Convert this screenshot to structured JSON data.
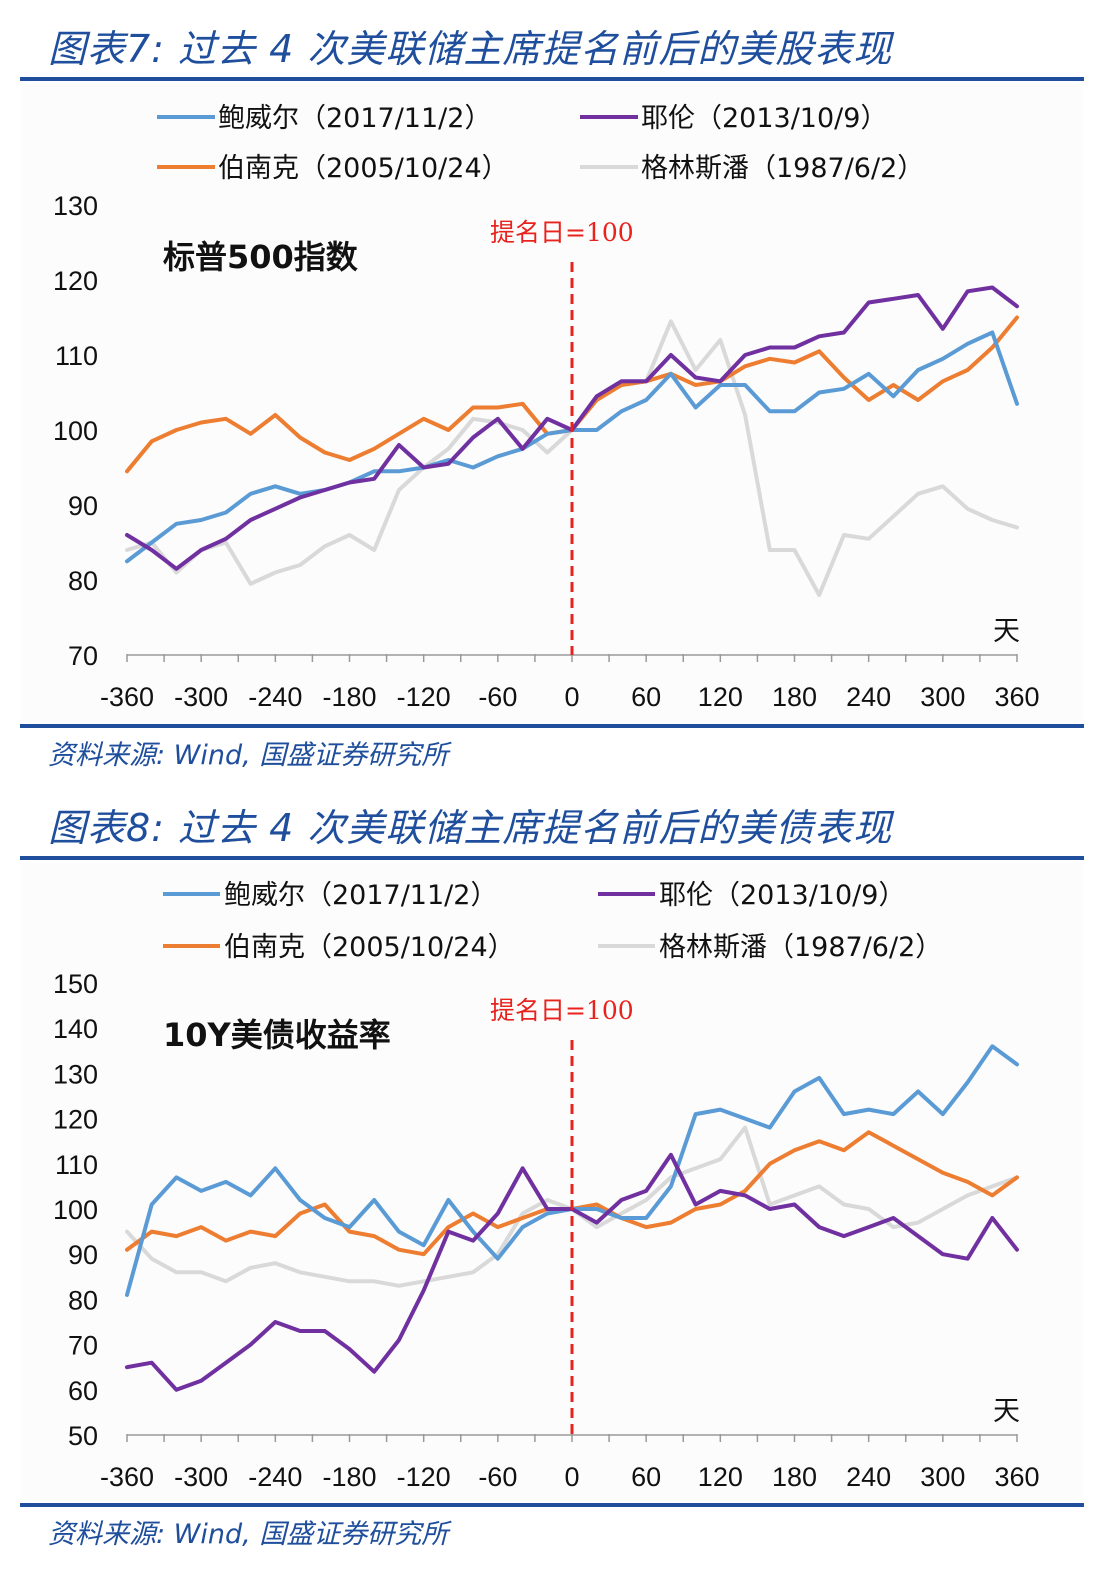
{
  "colors": {
    "powell": "#5b9bd5",
    "yellen": "#7030a0",
    "bernanke": "#ed7d31",
    "greenspan": "#d9d9d9",
    "nomination_line": "#e8231d",
    "title": "#1f4e9c"
  },
  "figures": [
    {
      "title": "图表7:  过去 4 次美联储主席提名前后的美股表现",
      "source": "资料来源: Wind, 国盛证券研究所",
      "legend": [
        "鲍威尔（2017/11/2）",
        "耶伦（2013/10/9）",
        "伯南克（2005/10/24）",
        "格林斯潘（1987/6/2）"
      ],
      "inner_label": "标普500指数",
      "annotation": "提名日=100",
      "x_unit": "天",
      "y_ticks": [
        "130",
        "120",
        "110",
        "100",
        "90",
        "80",
        "70"
      ],
      "x_ticks": [
        "-360",
        "-300",
        "-240",
        "-180",
        "-120",
        "-60",
        "0",
        "60",
        "120",
        "180",
        "240",
        "300",
        "360"
      ]
    },
    {
      "title": "图表8:  过去 4 次美联储主席提名前后的美债表现",
      "source": "资料来源: Wind, 国盛证券研究所",
      "legend": [
        "鲍威尔（2017/11/2）",
        "耶伦（2013/10/9）",
        "伯南克（2005/10/24）",
        "格林斯潘（1987/6/2）"
      ],
      "inner_label": "10Y美债收益率",
      "annotation": "提名日=100",
      "x_unit": "天",
      "y_ticks": [
        "150",
        "140",
        "130",
        "120",
        "110",
        "100",
        "90",
        "80",
        "70",
        "60",
        "50"
      ],
      "x_ticks": [
        "-360",
        "-300",
        "-240",
        "-180",
        "-120",
        "-60",
        "0",
        "60",
        "120",
        "180",
        "240",
        "300",
        "360"
      ]
    }
  ],
  "chart_data": [
    {
      "type": "line",
      "title": "标普500指数",
      "xlabel": "天",
      "ylabel": "",
      "xlim": [
        -360,
        360
      ],
      "ylim": [
        70,
        130
      ],
      "grid": false,
      "legend_position": "top",
      "vertical_marker": {
        "x": 0,
        "label": "提名日=100",
        "style": "dashed"
      },
      "x": [
        -360,
        -340,
        -320,
        -300,
        -280,
        -260,
        -240,
        -220,
        -200,
        -180,
        -160,
        -140,
        -120,
        -100,
        -80,
        -60,
        -40,
        -20,
        0,
        20,
        40,
        60,
        80,
        100,
        120,
        140,
        160,
        180,
        200,
        220,
        240,
        260,
        280,
        300,
        320,
        340,
        360
      ],
      "series": [
        {
          "name": "鲍威尔（2017/11/2）",
          "key": "powell",
          "values": [
            82.5,
            85,
            87.5,
            88,
            89,
            91.5,
            92.5,
            91.5,
            92,
            93,
            94.5,
            94.5,
            95,
            96,
            95,
            96.5,
            97.5,
            99.5,
            100,
            100,
            102.5,
            104,
            107.5,
            103,
            106,
            106,
            102.5,
            102.5,
            105,
            105.5,
            107.5,
            104.5,
            108,
            109.5,
            111.5,
            113,
            103.5
          ]
        },
        {
          "name": "耶伦（2013/10/9）",
          "key": "yellen",
          "values": [
            86,
            84,
            81.5,
            84,
            85.5,
            88,
            89.5,
            91,
            92,
            93,
            93.5,
            98,
            95,
            95.5,
            99,
            101.5,
            97.5,
            101.5,
            100,
            104.5,
            106.5,
            106.5,
            110,
            107,
            106.5,
            110,
            111,
            111,
            112.5,
            113,
            117,
            117.5,
            118,
            113.5,
            118.5,
            119,
            116.5
          ]
        },
        {
          "name": "伯南克（2005/10/24）",
          "key": "bernanke",
          "values": [
            94.5,
            98.5,
            100,
            101,
            101.5,
            99.5,
            102,
            99,
            97,
            96,
            97.5,
            99.5,
            101.5,
            100,
            103,
            103,
            103.5,
            99.5,
            100,
            104,
            106,
            106.5,
            107.5,
            106,
            106.5,
            108.5,
            109.5,
            109,
            110.5,
            107,
            104,
            106,
            104,
            106.5,
            108,
            111,
            115
          ]
        },
        {
          "name": "格林斯潘（1987/6/2）",
          "key": "greenspan",
          "values": [
            84,
            85,
            81,
            84,
            85,
            79.5,
            81,
            82,
            84.5,
            86,
            84,
            92,
            95,
            97.5,
            101.5,
            101,
            100,
            97,
            100,
            104.5,
            106,
            106.5,
            114.5,
            108,
            112,
            102,
            84,
            84,
            78,
            86,
            85.5,
            88.5,
            91.5,
            92.5,
            89.5,
            88,
            87
          ]
        }
      ]
    },
    {
      "type": "line",
      "title": "10Y美债收益率",
      "xlabel": "天",
      "ylabel": "",
      "xlim": [
        -360,
        360
      ],
      "ylim": [
        50,
        150
      ],
      "grid": false,
      "legend_position": "top",
      "vertical_marker": {
        "x": 0,
        "label": "提名日=100",
        "style": "dashed"
      },
      "x": [
        -360,
        -340,
        -320,
        -300,
        -280,
        -260,
        -240,
        -220,
        -200,
        -180,
        -160,
        -140,
        -120,
        -100,
        -80,
        -60,
        -40,
        -20,
        0,
        20,
        40,
        60,
        80,
        100,
        120,
        140,
        160,
        180,
        200,
        220,
        240,
        260,
        280,
        300,
        320,
        340,
        360
      ],
      "series": [
        {
          "name": "鲍威尔（2017/11/2）",
          "key": "powell",
          "values": [
            81,
            101,
            107,
            104,
            106,
            103,
            109,
            102,
            98,
            96,
            102,
            95,
            92,
            102,
            95,
            89,
            96,
            99,
            100,
            100,
            98,
            98,
            105,
            121,
            122,
            120,
            118,
            126,
            129,
            121,
            122,
            121,
            126,
            121,
            128,
            136,
            132
          ]
        },
        {
          "name": "耶伦（2013/10/9）",
          "key": "yellen",
          "values": [
            65,
            66,
            60,
            62,
            66,
            70,
            75,
            73,
            73,
            69,
            64,
            71,
            82,
            95,
            93,
            99,
            109,
            100,
            100,
            97,
            102,
            104,
            112,
            101,
            104,
            103,
            100,
            101,
            96,
            94,
            96,
            98,
            94,
            90,
            89,
            98,
            91
          ]
        },
        {
          "name": "伯南克（2005/10/24）",
          "key": "bernanke",
          "values": [
            91,
            95,
            94,
            96,
            93,
            95,
            94,
            99,
            101,
            95,
            94,
            91,
            90,
            96,
            99,
            96,
            98,
            100,
            100,
            101,
            98,
            96,
            97,
            100,
            101,
            104,
            110,
            113,
            115,
            113,
            117,
            114,
            111,
            108,
            106,
            103,
            107
          ]
        },
        {
          "name": "格林斯潘（1987/6/2）",
          "key": "greenspan",
          "values": [
            95,
            89,
            86,
            86,
            84,
            87,
            88,
            86,
            85,
            84,
            84,
            83,
            84,
            85,
            86,
            90,
            99,
            102,
            100,
            96,
            99,
            102,
            107,
            109,
            111,
            118,
            101,
            103,
            105,
            101,
            100,
            96,
            97,
            100,
            103,
            105,
            107
          ]
        }
      ]
    }
  ]
}
